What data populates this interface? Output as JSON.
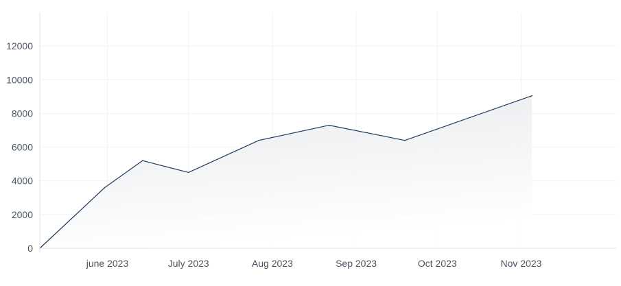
{
  "chart_data": {
    "type": "area",
    "title": "",
    "xlabel": "",
    "ylabel": "",
    "x_ticks": [
      "june 2023",
      "July 2023",
      "Aug 2023",
      "Sep 2023",
      "Oct 2023",
      "Nov 2023"
    ],
    "y_ticks": [
      "0",
      "2000",
      "4000",
      "6000",
      "8000",
      "10000",
      "12000"
    ],
    "ylim": [
      0,
      14000
    ],
    "xlim": [
      "2023-05-07",
      "2024-01-15"
    ],
    "grid": true,
    "series": [
      {
        "points": [
          {
            "x": "2023-05-07",
            "y": 0
          },
          {
            "x": "2023-05-31",
            "y": 3600
          },
          {
            "x": "2023-06-14",
            "y": 5200
          },
          {
            "x": "2023-07-01",
            "y": 4500
          },
          {
            "x": "2023-07-27",
            "y": 6400
          },
          {
            "x": "2023-08-22",
            "y": 7300
          },
          {
            "x": "2023-09-19",
            "y": 6400
          },
          {
            "x": "2023-11-05",
            "y": 9050
          }
        ]
      }
    ],
    "colors": {
      "line": "#1e3a5f",
      "fill": "#e5e7eb",
      "grid": "#f1f2f4",
      "axis": "#dfe2e6",
      "tick_text": "#4b5563"
    }
  }
}
